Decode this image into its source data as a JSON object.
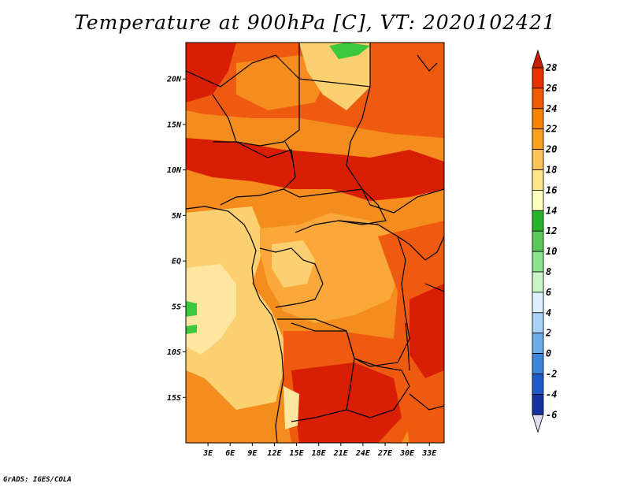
{
  "title": "Temperature at 900hPa [C], VT: 2020102421",
  "credit": "GrADS: IGES/COLA",
  "map": {
    "lat_labels": [
      "20N",
      "15N",
      "10N",
      "5N",
      "EQ",
      "5S",
      "10S",
      "15S"
    ],
    "lon_labels": [
      "3E",
      "6E",
      "9E",
      "12E",
      "15E",
      "18E",
      "21E",
      "24E",
      "27E",
      "30E",
      "33E"
    ],
    "lat_range": [
      -20,
      24
    ],
    "lon_range": [
      0,
      35
    ]
  },
  "colorbar": {
    "labels": [
      "28",
      "26",
      "24",
      "22",
      "20",
      "18",
      "16",
      "14",
      "12",
      "10",
      "8",
      "6",
      "4",
      "2",
      "0",
      "-2",
      "-4",
      "-6"
    ],
    "colors": [
      "#c81e00",
      "#e63200",
      "#f05a00",
      "#f58200",
      "#faa01e",
      "#fac35a",
      "#ffe68c",
      "#ffffbe",
      "#28b428",
      "#5ac85a",
      "#8ce18c",
      "#c8f5c8",
      "#dcf0ff",
      "#a5d2f5",
      "#6eaae6",
      "#3c87dc",
      "#1e5ac8",
      "#1432a0",
      "#0a1464",
      "#dcdcf0"
    ]
  },
  "colors": {
    "hot": "#d81e05",
    "warm": "#ee5a0f",
    "orange": "#f58c1e",
    "lightorange": "#faa83a",
    "yellow": "#fbd070",
    "paleyellow": "#fee5a0",
    "green": "#3cc83c"
  }
}
